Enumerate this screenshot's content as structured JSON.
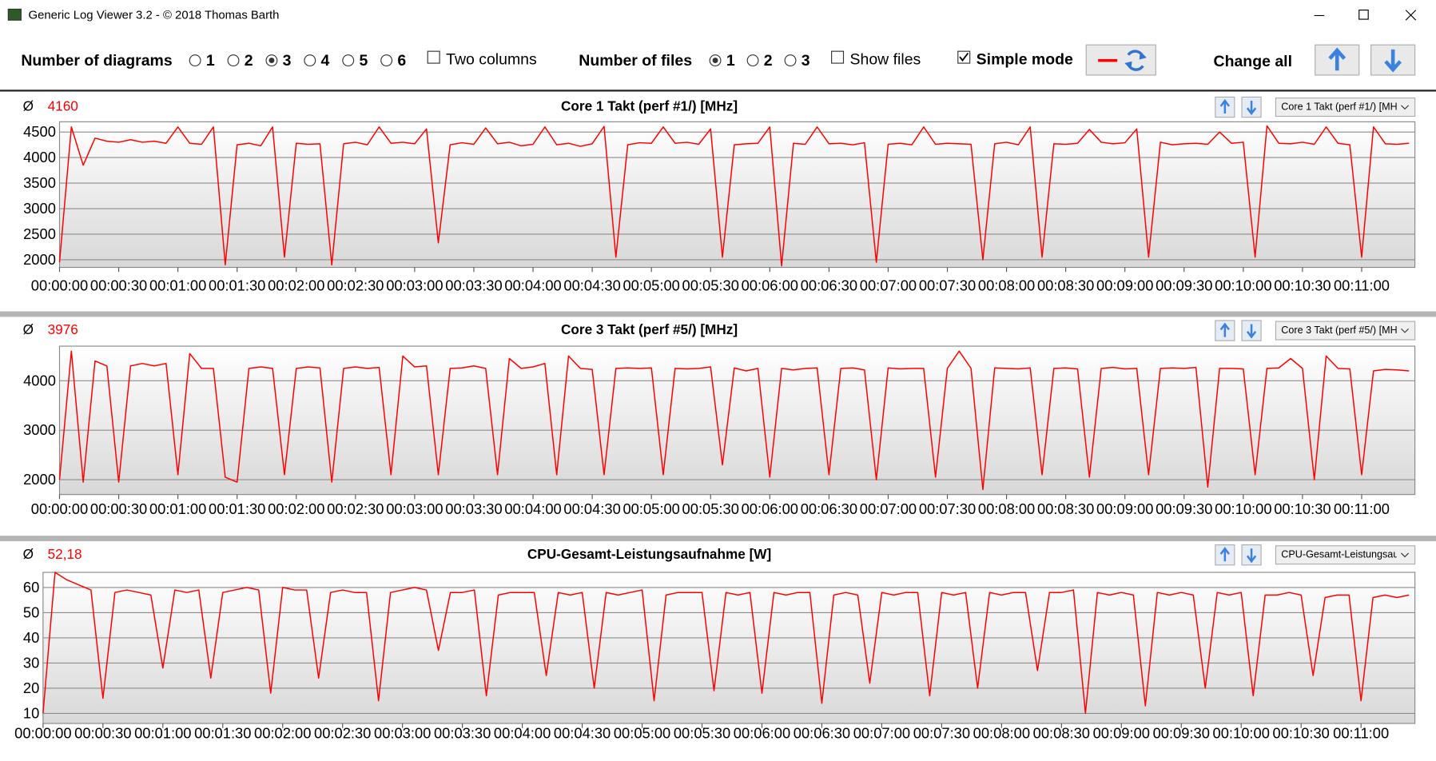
{
  "window": {
    "title": "Generic Log Viewer 3.2 - © 2018 Thomas Barth"
  },
  "toolbar": {
    "diagrams_label": "Number of diagrams",
    "diagram_options": [
      "1",
      "2",
      "3",
      "4",
      "5",
      "6"
    ],
    "diagrams_selected": "3",
    "two_columns": "Two columns",
    "two_columns_checked": false,
    "files_label": "Number of files",
    "file_options": [
      "1",
      "2",
      "3"
    ],
    "files_selected": "1",
    "show_files": "Show files",
    "show_files_checked": false,
    "simple_mode": "Simple mode",
    "simple_mode_checked": true,
    "change_all": "Change all"
  },
  "chart_data": [
    {
      "type": "line",
      "title": "Core 1 Takt (perf #1/) [MHz]",
      "average_symbol": "Ø",
      "average": 4160,
      "selector": "Core 1 Takt (perf #1/) [MH",
      "color": "#ff0000",
      "grid": true,
      "x": [
        0,
        6,
        12,
        18,
        24,
        30,
        36,
        42,
        48,
        54,
        60,
        66,
        72,
        78,
        84,
        90,
        96,
        102,
        108,
        114,
        120,
        126,
        132,
        138,
        144,
        150,
        156,
        162,
        168,
        174,
        180,
        186,
        192,
        198,
        204,
        210,
        216,
        222,
        228,
        234,
        240,
        246,
        252,
        258,
        264,
        270,
        276,
        282,
        288,
        294,
        300,
        306,
        312,
        318,
        324,
        330,
        336,
        342,
        348,
        354,
        360,
        366,
        372,
        378,
        384,
        390,
        396,
        402,
        408,
        414,
        420,
        426,
        432,
        438,
        444,
        450,
        456,
        462,
        468,
        474,
        480,
        486,
        492,
        498,
        504,
        510,
        516,
        522,
        528,
        534,
        540,
        546,
        552,
        558,
        564,
        570,
        576,
        582,
        588,
        594,
        600,
        606,
        612,
        618,
        624,
        630,
        636,
        642,
        648,
        654,
        660,
        666,
        672,
        678,
        684
      ],
      "values": [
        1950,
        4600,
        3850,
        4380,
        4320,
        4300,
        4350,
        4300,
        4320,
        4280,
        4600,
        4280,
        4260,
        4600,
        1900,
        4250,
        4280,
        4230,
        4600,
        2050,
        4280,
        4260,
        4270,
        1900,
        4270,
        4300,
        4250,
        4600,
        4280,
        4300,
        4270,
        4560,
        2330,
        4250,
        4290,
        4260,
        4580,
        4270,
        4300,
        4230,
        4260,
        4600,
        4250,
        4280,
        4220,
        4270,
        4610,
        2050,
        4250,
        4290,
        4280,
        4600,
        4280,
        4300,
        4260,
        4560,
        2050,
        4250,
        4270,
        4280,
        4600,
        1880,
        4280,
        4260,
        4600,
        4270,
        4280,
        4250,
        4290,
        1950,
        4260,
        4280,
        4250,
        4600,
        4260,
        4280,
        4270,
        4260,
        2000,
        4270,
        4300,
        4250,
        4600,
        2050,
        4270,
        4260,
        4280,
        4550,
        4300,
        4270,
        4290,
        4560,
        2050,
        4300,
        4250,
        4270,
        4280,
        4260,
        4500,
        4280,
        4300,
        2050,
        4620,
        4280,
        4270,
        4300,
        4260,
        4600,
        4280,
        4250,
        2050,
        4600,
        4270,
        4260,
        4280
      ],
      "xlim": [
        0,
        687
      ],
      "ylim": [
        1850,
        4700
      ],
      "yticks": [
        2000,
        2500,
        3000,
        3500,
        4000,
        4500
      ],
      "xticks": [
        {
          "value": 0,
          "label": "00:00:00"
        },
        {
          "value": 30,
          "label": "00:00:30"
        },
        {
          "value": 60,
          "label": "00:01:00"
        },
        {
          "value": 90,
          "label": "00:01:30"
        },
        {
          "value": 120,
          "label": "00:02:00"
        },
        {
          "value": 150,
          "label": "00:02:30"
        },
        {
          "value": 180,
          "label": "00:03:00"
        },
        {
          "value": 210,
          "label": "00:03:30"
        },
        {
          "value": 240,
          "label": "00:04:00"
        },
        {
          "value": 270,
          "label": "00:04:30"
        },
        {
          "value": 300,
          "label": "00:05:00"
        },
        {
          "value": 330,
          "label": "00:05:30"
        },
        {
          "value": 360,
          "label": "00:06:00"
        },
        {
          "value": 390,
          "label": "00:06:30"
        },
        {
          "value": 420,
          "label": "00:07:00"
        },
        {
          "value": 450,
          "label": "00:07:30"
        },
        {
          "value": 480,
          "label": "00:08:00"
        },
        {
          "value": 510,
          "label": "00:08:30"
        },
        {
          "value": 540,
          "label": "00:09:00"
        },
        {
          "value": 570,
          "label": "00:09:30"
        },
        {
          "value": 600,
          "label": "00:10:00"
        },
        {
          "value": 630,
          "label": "00:10:30"
        },
        {
          "value": 660,
          "label": "00:11:00"
        }
      ]
    },
    {
      "type": "line",
      "title": "Core 3 Takt (perf #5/) [MHz]",
      "average_symbol": "Ø",
      "average": 3976,
      "selector": "Core 3 Takt (perf #5/) [MH",
      "color": "#ff0000",
      "grid": true,
      "x": [
        0,
        6,
        12,
        18,
        24,
        30,
        36,
        42,
        48,
        54,
        60,
        66,
        72,
        78,
        84,
        90,
        96,
        102,
        108,
        114,
        120,
        126,
        132,
        138,
        144,
        150,
        156,
        162,
        168,
        174,
        180,
        186,
        192,
        198,
        204,
        210,
        216,
        222,
        228,
        234,
        240,
        246,
        252,
        258,
        264,
        270,
        276,
        282,
        288,
        294,
        300,
        306,
        312,
        318,
        324,
        330,
        336,
        342,
        348,
        354,
        360,
        366,
        372,
        378,
        384,
        390,
        396,
        402,
        408,
        414,
        420,
        426,
        432,
        438,
        444,
        450,
        456,
        462,
        468,
        474,
        480,
        486,
        492,
        498,
        504,
        510,
        516,
        522,
        528,
        534,
        540,
        546,
        552,
        558,
        564,
        570,
        576,
        582,
        588,
        594,
        600,
        606,
        612,
        618,
        624,
        630,
        636,
        642,
        648,
        654,
        660,
        666,
        672,
        678,
        684
      ],
      "values": [
        2000,
        4600,
        1950,
        4400,
        4300,
        1950,
        4300,
        4350,
        4300,
        4350,
        2100,
        4550,
        4250,
        4250,
        2050,
        1950,
        4250,
        4280,
        4250,
        2100,
        4250,
        4280,
        4260,
        1950,
        4250,
        4280,
        4250,
        4270,
        2100,
        4500,
        4280,
        4300,
        2100,
        4250,
        4260,
        4300,
        4250,
        2100,
        4450,
        4250,
        4280,
        4350,
        2100,
        4500,
        4250,
        4230,
        2100,
        4250,
        4260,
        4250,
        4260,
        2100,
        4250,
        4240,
        4250,
        4280,
        2300,
        4260,
        4200,
        4250,
        2050,
        4250,
        4220,
        4250,
        4260,
        2100,
        4250,
        4260,
        4220,
        2000,
        4260,
        4240,
        4250,
        4250,
        2050,
        4250,
        4600,
        4250,
        1800,
        4260,
        4250,
        4240,
        4260,
        2100,
        4250,
        4260,
        4240,
        2050,
        4250,
        4270,
        4240,
        4250,
        2100,
        4250,
        4260,
        4250,
        4270,
        1850,
        4250,
        4250,
        4240,
        2100,
        4250,
        4260,
        4450,
        4250,
        2000,
        4500,
        4250,
        4240,
        2100,
        4200,
        4230,
        4220,
        4200
      ],
      "xlim": [
        0,
        687
      ],
      "ylim": [
        1700,
        4700
      ],
      "yticks": [
        2000,
        3000,
        4000
      ],
      "xticks": [
        {
          "value": 0,
          "label": "00:00:00"
        },
        {
          "value": 30,
          "label": "00:00:30"
        },
        {
          "value": 60,
          "label": "00:01:00"
        },
        {
          "value": 90,
          "label": "00:01:30"
        },
        {
          "value": 120,
          "label": "00:02:00"
        },
        {
          "value": 150,
          "label": "00:02:30"
        },
        {
          "value": 180,
          "label": "00:03:00"
        },
        {
          "value": 210,
          "label": "00:03:30"
        },
        {
          "value": 240,
          "label": "00:04:00"
        },
        {
          "value": 270,
          "label": "00:04:30"
        },
        {
          "value": 300,
          "label": "00:05:00"
        },
        {
          "value": 330,
          "label": "00:05:30"
        },
        {
          "value": 360,
          "label": "00:06:00"
        },
        {
          "value": 390,
          "label": "00:06:30"
        },
        {
          "value": 420,
          "label": "00:07:00"
        },
        {
          "value": 450,
          "label": "00:07:30"
        },
        {
          "value": 480,
          "label": "00:08:00"
        },
        {
          "value": 510,
          "label": "00:08:30"
        },
        {
          "value": 540,
          "label": "00:09:00"
        },
        {
          "value": 570,
          "label": "00:09:30"
        },
        {
          "value": 600,
          "label": "00:10:00"
        },
        {
          "value": 630,
          "label": "00:10:30"
        },
        {
          "value": 660,
          "label": "00:11:00"
        }
      ]
    },
    {
      "type": "line",
      "title": "CPU-Gesamt-Leistungsaufnahme [W]",
      "average_symbol": "Ø",
      "average": {
        "value": 52.18,
        "label": "52,18"
      },
      "selector": "CPU-Gesamt-Leistungsau",
      "color": "#ff0000",
      "grid": true,
      "x": [
        0,
        6,
        12,
        18,
        24,
        30,
        36,
        42,
        48,
        54,
        60,
        66,
        72,
        78,
        84,
        90,
        96,
        102,
        108,
        114,
        120,
        126,
        132,
        138,
        144,
        150,
        156,
        162,
        168,
        174,
        180,
        186,
        192,
        198,
        204,
        210,
        216,
        222,
        228,
        234,
        240,
        246,
        252,
        258,
        264,
        270,
        276,
        282,
        288,
        294,
        300,
        306,
        312,
        318,
        324,
        330,
        336,
        342,
        348,
        354,
        360,
        366,
        372,
        378,
        384,
        390,
        396,
        402,
        408,
        414,
        420,
        426,
        432,
        438,
        444,
        450,
        456,
        462,
        468,
        474,
        480,
        486,
        492,
        498,
        504,
        510,
        516,
        522,
        528,
        534,
        540,
        546,
        552,
        558,
        564,
        570,
        576,
        582,
        588,
        594,
        600,
        606,
        612,
        618,
        624,
        630,
        636,
        642,
        648,
        654,
        660,
        666,
        672,
        678,
        684
      ],
      "values": [
        10,
        66,
        63,
        61,
        59,
        16,
        58,
        59,
        58,
        57,
        28,
        59,
        58,
        59,
        24,
        58,
        59,
        60,
        59,
        18,
        60,
        59,
        59,
        24,
        58,
        59,
        58,
        58,
        15,
        58,
        59,
        60,
        59,
        35,
        58,
        58,
        59,
        17,
        57,
        58,
        58,
        58,
        25,
        58,
        57,
        58,
        20,
        58,
        57,
        58,
        59,
        15,
        57,
        58,
        58,
        58,
        19,
        58,
        57,
        58,
        18,
        58,
        57,
        58,
        58,
        14,
        57,
        58,
        57,
        22,
        58,
        57,
        58,
        58,
        17,
        58,
        57,
        58,
        20,
        58,
        57,
        58,
        58,
        27,
        58,
        58,
        59,
        10,
        58,
        57,
        58,
        57,
        13,
        58,
        57,
        58,
        57,
        20,
        58,
        57,
        58,
        17,
        57,
        57,
        58,
        57,
        25,
        56,
        57,
        57,
        15,
        56,
        57,
        56,
        57
      ],
      "xlim": [
        0,
        687
      ],
      "ylim": [
        6,
        66
      ],
      "yticks": [
        10,
        20,
        30,
        40,
        50,
        60
      ],
      "xticks": [
        {
          "value": 0,
          "label": "00:00:00"
        },
        {
          "value": 30,
          "label": "00:00:30"
        },
        {
          "value": 60,
          "label": "00:01:00"
        },
        {
          "value": 90,
          "label": "00:01:30"
        },
        {
          "value": 120,
          "label": "00:02:00"
        },
        {
          "value": 150,
          "label": "00:02:30"
        },
        {
          "value": 180,
          "label": "00:03:00"
        },
        {
          "value": 210,
          "label": "00:03:30"
        },
        {
          "value": 240,
          "label": "00:04:00"
        },
        {
          "value": 270,
          "label": "00:04:30"
        },
        {
          "value": 300,
          "label": "00:05:00"
        },
        {
          "value": 330,
          "label": "00:05:30"
        },
        {
          "value": 360,
          "label": "00:06:00"
        },
        {
          "value": 390,
          "label": "00:06:30"
        },
        {
          "value": 420,
          "label": "00:07:00"
        },
        {
          "value": 450,
          "label": "00:07:30"
        },
        {
          "value": 480,
          "label": "00:08:00"
        },
        {
          "value": 510,
          "label": "00:08:30"
        },
        {
          "value": 540,
          "label": "00:09:00"
        },
        {
          "value": 570,
          "label": "00:09:30"
        },
        {
          "value": 600,
          "label": "00:10:00"
        },
        {
          "value": 630,
          "label": "00:10:30"
        },
        {
          "value": 660,
          "label": "00:11:00"
        }
      ]
    }
  ]
}
